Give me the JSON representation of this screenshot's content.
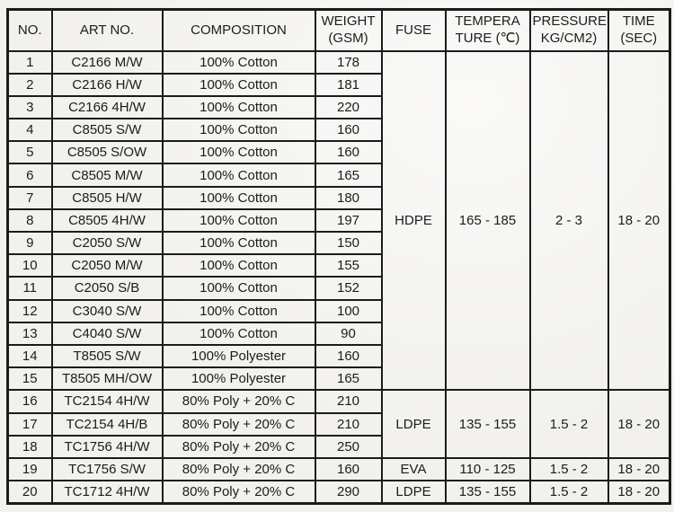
{
  "page": {
    "background": "#f2f1ed",
    "border_color": "#1b1b1b",
    "text_color": "#1c1c1c"
  },
  "table": {
    "headers": {
      "no": "NO.",
      "art": "ART NO.",
      "composition": "COMPOSITION",
      "weight_line1": "WEIGHT",
      "weight_line2": "(GSM)",
      "fuse": "FUSE",
      "temperature_line1": "TEMPERA",
      "temperature_line2": "TURE (℃)",
      "pressure_line1": "PRESSURE",
      "pressure_line2": "KG/CM2)",
      "time_line1": "TIME",
      "time_line2": "(SEC)"
    },
    "rows": [
      {
        "no": "1",
        "art": "C2166 M/W",
        "composition": "100% Cotton",
        "weight": "178"
      },
      {
        "no": "2",
        "art": "C2166 H/W",
        "composition": "100% Cotton",
        "weight": "181"
      },
      {
        "no": "3",
        "art": "C2166 4H/W",
        "composition": "100% Cotton",
        "weight": "220"
      },
      {
        "no": "4",
        "art": "C8505 S/W",
        "composition": "100% Cotton",
        "weight": "160"
      },
      {
        "no": "5",
        "art": "C8505 S/OW",
        "composition": "100% Cotton",
        "weight": "160"
      },
      {
        "no": "6",
        "art": "C8505 M/W",
        "composition": "100% Cotton",
        "weight": "165"
      },
      {
        "no": "7",
        "art": "C8505 H/W",
        "composition": "100% Cotton",
        "weight": "180"
      },
      {
        "no": "8",
        "art": "C8505 4H/W",
        "composition": "100% Cotton",
        "weight": "197"
      },
      {
        "no": "9",
        "art": "C2050 S/W",
        "composition": "100% Cotton",
        "weight": "150"
      },
      {
        "no": "10",
        "art": "C2050 M/W",
        "composition": "100% Cotton",
        "weight": "155"
      },
      {
        "no": "11",
        "art": "C2050 S/B",
        "composition": "100% Cotton",
        "weight": "152"
      },
      {
        "no": "12",
        "art": "C3040 S/W",
        "composition": "100% Cotton",
        "weight": "100"
      },
      {
        "no": "13",
        "art": "C4040 S/W",
        "composition": "100% Cotton",
        "weight": "90"
      },
      {
        "no": "14",
        "art": "T8505 S/W",
        "composition": "100% Polyester",
        "weight": "160"
      },
      {
        "no": "15",
        "art": "T8505 MH/OW",
        "composition": "100% Polyester",
        "weight": "165"
      },
      {
        "no": "16",
        "art": "TC2154 4H/W",
        "composition": "80% Poly + 20% C",
        "weight": "210"
      },
      {
        "no": "17",
        "art": "TC2154 4H/B",
        "composition": "80% Poly + 20% C",
        "weight": "210"
      },
      {
        "no": "18",
        "art": "TC1756 4H/W",
        "composition": "80% Poly + 20% C",
        "weight": "250"
      },
      {
        "no": "19",
        "art": "TC1756 S/W",
        "composition": "80% Poly + 20% C",
        "weight": "160"
      },
      {
        "no": "20",
        "art": "TC1712 4H/W",
        "composition": "80% Poly + 20% C",
        "weight": "290"
      }
    ],
    "fuse_groups": [
      {
        "start": 0,
        "span": 15,
        "fuse": "HDPE",
        "temperature": "165 - 185",
        "pressure": "2 - 3",
        "time": "18 - 20"
      },
      {
        "start": 15,
        "span": 3,
        "fuse": "LDPE",
        "temperature": "135 - 155",
        "pressure": "1.5 - 2",
        "time": "18 - 20"
      },
      {
        "start": 18,
        "span": 1,
        "fuse": "EVA",
        "temperature": "110 - 125",
        "pressure": "1.5 - 2",
        "time": "18 - 20"
      },
      {
        "start": 19,
        "span": 1,
        "fuse": "LDPE",
        "temperature": "135 - 155",
        "pressure": "1.5 - 2",
        "time": "18 - 20"
      }
    ]
  }
}
